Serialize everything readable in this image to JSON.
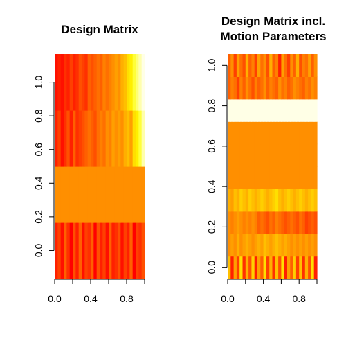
{
  "chart_data": [
    {
      "type": "heatmap",
      "title": "Design Matrix",
      "xlabel": "",
      "ylabel": "",
      "xlim": [
        0,
        1
      ],
      "ylim": [
        -0.167,
        1.167
      ],
      "x_ticks": [
        "0.0",
        "0.4",
        "0.8"
      ],
      "x_tick_values": [
        0.0,
        0.4,
        0.8
      ],
      "y_ticks": [
        "0.0",
        "0.2",
        "0.4",
        "0.6",
        "0.8",
        "1.0"
      ],
      "y_tick_values": [
        0.0,
        0.2,
        0.4,
        0.6,
        0.8,
        1.0
      ],
      "palette": "heat",
      "rows": [
        {
          "y": 0.0,
          "levels": [
            0.1,
            0.2,
            0.05,
            0.3,
            0.15,
            0.0,
            0.25,
            0.1,
            0.3,
            0.05,
            0.2,
            0.15,
            0.3,
            0.0,
            0.25,
            0.1,
            0.2,
            0.05,
            0.3,
            0.1,
            0.15,
            0.25,
            0.05,
            0.2,
            0.1,
            0.3,
            0.0,
            0.2,
            0.15,
            0.25
          ]
        },
        {
          "y": 0.333,
          "levels": [
            0.45,
            0.45,
            0.45,
            0.45,
            0.45,
            0.45,
            0.45,
            0.45,
            0.45,
            0.45,
            0.45,
            0.45,
            0.45,
            0.45,
            0.45,
            0.45,
            0.45,
            0.45,
            0.45,
            0.45,
            0.45,
            0.45,
            0.45,
            0.45,
            0.45,
            0.45,
            0.45,
            0.45,
            0.45,
            0.45
          ]
        },
        {
          "y": 0.667,
          "levels": [
            0.1,
            0.2,
            0.05,
            0.15,
            0.25,
            0.1,
            0.3,
            0.15,
            0.2,
            0.25,
            0.3,
            0.35,
            0.3,
            0.25,
            0.35,
            0.4,
            0.35,
            0.45,
            0.4,
            0.5,
            0.45,
            0.5,
            0.45,
            0.55,
            0.6,
            0.5,
            0.7,
            0.75,
            0.85,
            0.95
          ]
        },
        {
          "y": 1.0,
          "levels": [
            0.05,
            0.1,
            0.05,
            0.15,
            0.1,
            0.2,
            0.1,
            0.15,
            0.25,
            0.2,
            0.15,
            0.3,
            0.25,
            0.3,
            0.35,
            0.3,
            0.4,
            0.35,
            0.4,
            0.45,
            0.5,
            0.45,
            0.55,
            0.6,
            0.7,
            0.75,
            0.85,
            0.9,
            0.95,
            1.0
          ]
        }
      ]
    },
    {
      "type": "heatmap",
      "title": "Design Matrix incl. Motion Parameters",
      "title_lines": [
        "Design Matrix incl.",
        "Motion Parameters"
      ],
      "xlabel": "",
      "ylabel": "",
      "xlim": [
        0,
        1
      ],
      "ylim": [
        -0.056,
        1.056
      ],
      "x_ticks": [
        "0.0",
        "0.4",
        "0.8"
      ],
      "x_tick_values": [
        0.0,
        0.4,
        0.8
      ],
      "y_ticks": [
        "0.0",
        "0.2",
        "0.4",
        "0.6",
        "0.8",
        "1.0"
      ],
      "y_tick_values": [
        0.0,
        0.2,
        0.4,
        0.6,
        0.8,
        1.0
      ],
      "palette": "heat",
      "rows": [
        {
          "y": 0.0,
          "levels": [
            0.6,
            0.1,
            0.5,
            0.2,
            0.7,
            0.15,
            0.55,
            0.25,
            0.65,
            0.1,
            0.5,
            0.3,
            0.7,
            0.2,
            0.55,
            0.15,
            0.6,
            0.25,
            0.7,
            0.1,
            0.5,
            0.3,
            0.65,
            0.2,
            0.6,
            0.15,
            0.55,
            0.25,
            0.7,
            0.1
          ]
        },
        {
          "y": 0.111,
          "levels": [
            0.45,
            0.5,
            0.45,
            0.55,
            0.45,
            0.5,
            0.55,
            0.5,
            0.45,
            0.5,
            0.55,
            0.5,
            0.6,
            0.55,
            0.5,
            0.55,
            0.6,
            0.55,
            0.5,
            0.55,
            0.5,
            0.45,
            0.5,
            0.45,
            0.5,
            0.45,
            0.5,
            0.45,
            0.5,
            0.45
          ]
        },
        {
          "y": 0.222,
          "levels": [
            0.45,
            0.4,
            0.45,
            0.5,
            0.45,
            0.4,
            0.45,
            0.4,
            0.45,
            0.4,
            0.3,
            0.35,
            0.3,
            0.25,
            0.35,
            0.3,
            0.4,
            0.35,
            0.3,
            0.25,
            0.3,
            0.35,
            0.3,
            0.25,
            0.35,
            0.3,
            0.2,
            0.25,
            0.3,
            0.25
          ]
        },
        {
          "y": 0.333,
          "levels": [
            0.55,
            0.5,
            0.6,
            0.55,
            0.65,
            0.6,
            0.55,
            0.65,
            0.6,
            0.55,
            0.6,
            0.65,
            0.6,
            0.55,
            0.6,
            0.65,
            0.7,
            0.6,
            0.55,
            0.6,
            0.65,
            0.6,
            0.55,
            0.6,
            0.65,
            0.6,
            0.55,
            0.6,
            0.65,
            0.6
          ]
        },
        {
          "y": 0.444,
          "levels": [
            0.45,
            0.45,
            0.45,
            0.45,
            0.45,
            0.45,
            0.45,
            0.45,
            0.45,
            0.45,
            0.45,
            0.45,
            0.45,
            0.45,
            0.45,
            0.45,
            0.45,
            0.45,
            0.45,
            0.45,
            0.45,
            0.45,
            0.45,
            0.45,
            0.45,
            0.45,
            0.45,
            0.45,
            0.45,
            0.45
          ]
        },
        {
          "y": 0.556,
          "levels": [
            0.45,
            0.45,
            0.45,
            0.45,
            0.45,
            0.45,
            0.45,
            0.45,
            0.45,
            0.45,
            0.45,
            0.45,
            0.45,
            0.45,
            0.45,
            0.45,
            0.45,
            0.45,
            0.45,
            0.45,
            0.45,
            0.45,
            0.45,
            0.45,
            0.45,
            0.45,
            0.45,
            0.45,
            0.45,
            0.45
          ]
        },
        {
          "y": 0.667,
          "levels": [
            0.45,
            0.45,
            0.45,
            0.45,
            0.45,
            0.45,
            0.45,
            0.45,
            0.45,
            0.45,
            0.45,
            0.45,
            0.45,
            0.45,
            0.45,
            0.45,
            0.45,
            0.45,
            0.45,
            0.45,
            0.45,
            0.45,
            0.45,
            0.45,
            0.45,
            0.45,
            0.45,
            0.45,
            0.45,
            0.45
          ]
        },
        {
          "y": 0.778,
          "levels": [
            1.0,
            1.0,
            1.0,
            1.0,
            1.0,
            1.0,
            1.0,
            1.0,
            1.0,
            1.0,
            1.0,
            1.0,
            1.0,
            1.0,
            1.0,
            1.0,
            1.0,
            1.0,
            1.0,
            1.0,
            1.0,
            1.0,
            1.0,
            1.0,
            1.0,
            1.0,
            1.0,
            1.0,
            1.0,
            1.0
          ]
        },
        {
          "y": 0.889,
          "levels": [
            0.3,
            0.4,
            0.35,
            0.2,
            0.4,
            0.3,
            0.45,
            0.35,
            0.25,
            0.4,
            0.3,
            0.35,
            0.45,
            0.3,
            0.4,
            0.35,
            0.3,
            0.45,
            0.35,
            0.4,
            0.3,
            0.35,
            0.45,
            0.4,
            0.35,
            0.3,
            0.4,
            0.35,
            0.45,
            0.4
          ]
        },
        {
          "y": 1.0,
          "levels": [
            0.3,
            0.45,
            0.2,
            0.5,
            0.35,
            0.25,
            0.55,
            0.3,
            0.4,
            0.2,
            0.5,
            0.35,
            0.45,
            0.25,
            0.55,
            0.3,
            0.4,
            0.1,
            0.5,
            0.35,
            0.2,
            0.45,
            0.3,
            0.55,
            0.25,
            0.4,
            0.35,
            0.5,
            0.3,
            0.45
          ]
        }
      ]
    }
  ]
}
